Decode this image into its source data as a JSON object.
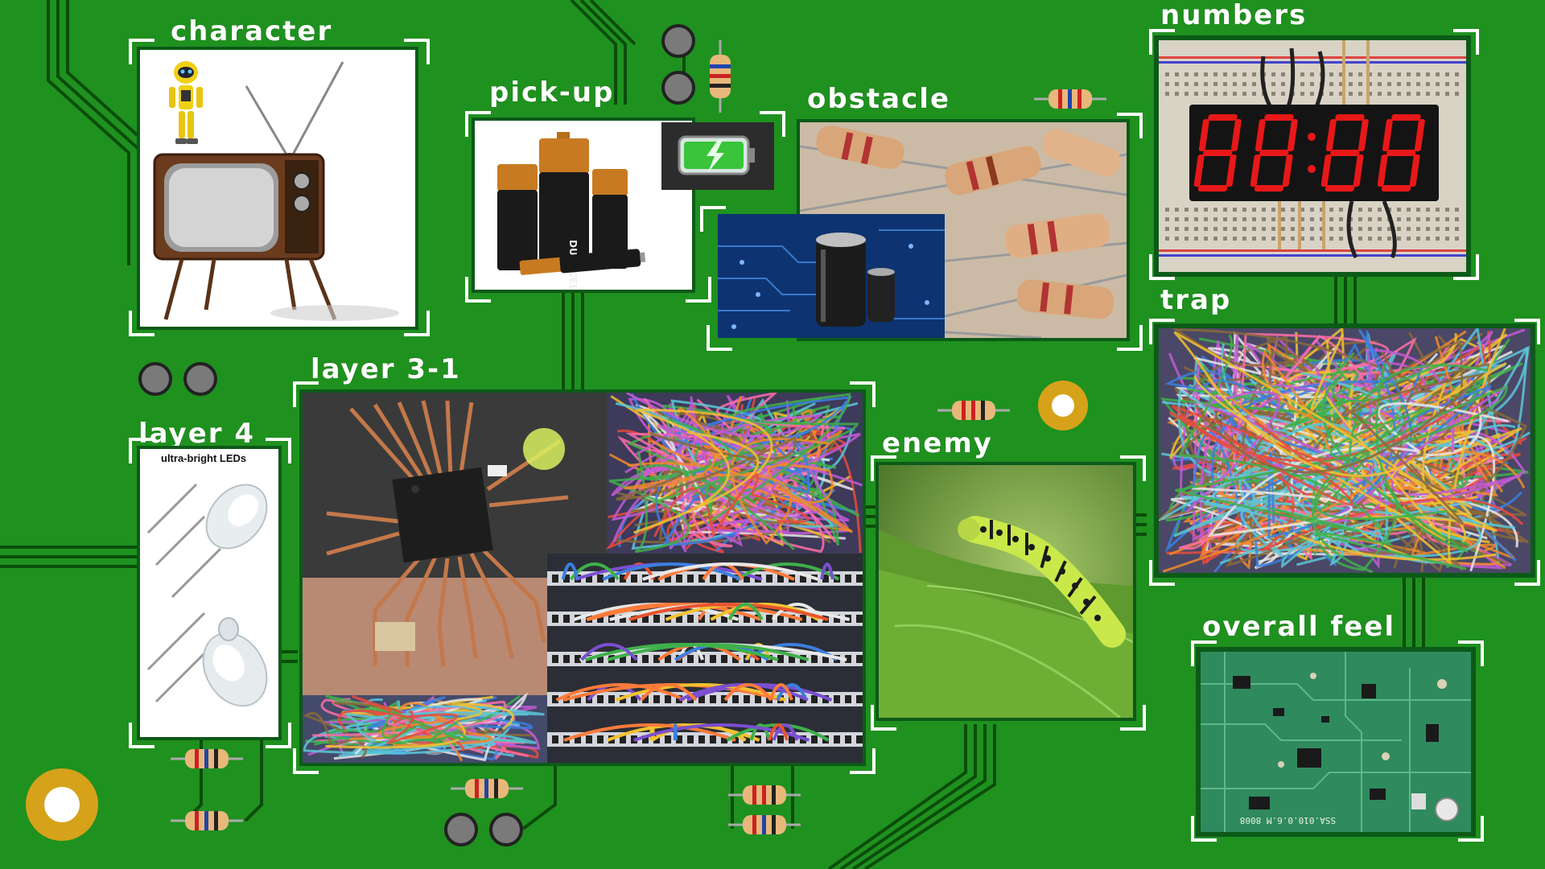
{
  "board": {
    "background": "#1f911f",
    "trace_color": "#0b4d0b",
    "pad_color": "#d6a21a"
  },
  "sections": {
    "character": {
      "label": "character"
    },
    "pickup": {
      "label": "pick-up",
      "brand": "DURACELL"
    },
    "obstacle": {
      "label": "obstacle"
    },
    "numbers": {
      "label": "numbers"
    },
    "layer4": {
      "label": "layer 4",
      "caption": "ultra-bright LEDs"
    },
    "layer31": {
      "label": "layer 3-1"
    },
    "enemy": {
      "label": "enemy"
    },
    "trap": {
      "label": "trap"
    },
    "overall": {
      "label": "overall feel",
      "silk": "SSA.010.0.6.M 8008"
    }
  },
  "icons": {
    "robot": "robot-icon",
    "tv": "retro-tv-icon",
    "battery": "battery-icon",
    "charging": "charging-battery-icon",
    "capacitor": "capacitor-icon",
    "resistor": "resistor-icon",
    "led": "led-icon",
    "chip": "microchip-icon",
    "caterpillar": "caterpillar-icon",
    "wires": "tangled-wires-icon",
    "display": "seven-segment-display-icon",
    "pcb": "circuit-board-icon"
  },
  "display": {
    "value": "8888",
    "color": "#e81818"
  }
}
